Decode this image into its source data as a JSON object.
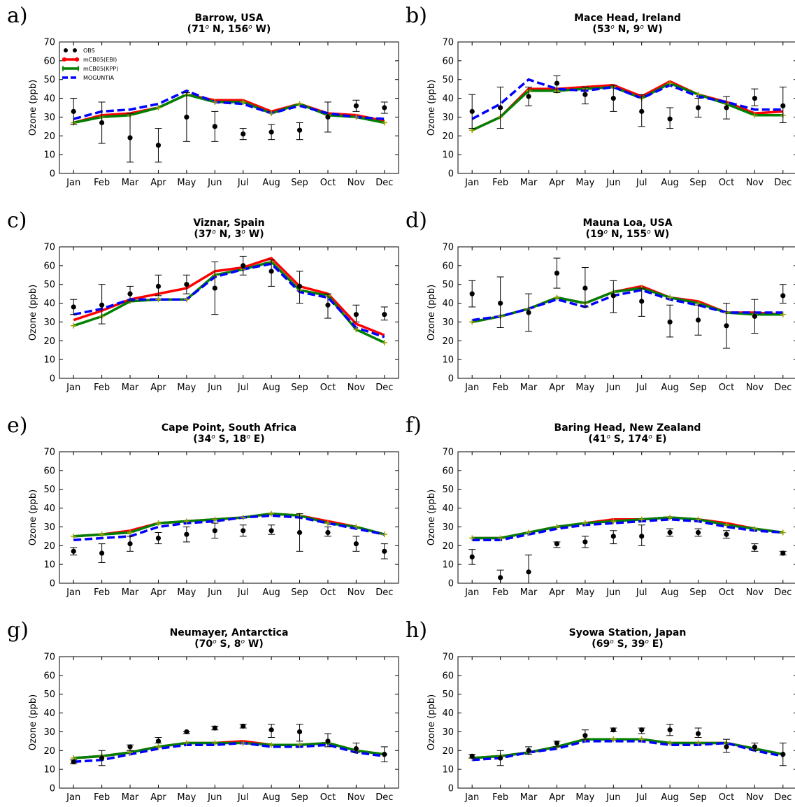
{
  "chart_data": {
    "type": "line",
    "categories": [
      "Jan",
      "Feb",
      "Mar",
      "Apr",
      "May",
      "Jun",
      "Jul",
      "Aug",
      "Sep",
      "Oct",
      "Nov",
      "Dec"
    ],
    "ylabel": "Ozone (ppb)",
    "ylim": [
      0,
      70
    ],
    "yticks": [
      0,
      10,
      20,
      30,
      40,
      50,
      60,
      70
    ],
    "grid": false,
    "legend": {
      "placement": "top-left",
      "panel": 0,
      "entries": [
        "OBS",
        "mCB05(EBI)",
        "mCB05(KPP)",
        "MOGUNTIA"
      ]
    },
    "series_styles": {
      "obs": {
        "color": "#000000"
      },
      "ebi": {
        "color": "#ff0000"
      },
      "kpp": {
        "color": "#008000"
      },
      "mog": {
        "color": "#0000ff"
      },
      "kpp_marker": "#9aa000"
    },
    "panels": [
      {
        "letter": "a)",
        "title": "Barrow, USA",
        "obs": [
          33,
          27,
          19,
          15,
          30,
          25,
          21,
          22,
          23,
          30,
          36,
          35
        ],
        "obs_low": [
          26,
          16,
          6,
          6,
          17,
          17,
          18,
          18,
          18,
          22,
          33,
          32
        ],
        "obs_high": [
          40,
          38,
          32,
          24,
          43,
          33,
          24,
          26,
          27,
          38,
          39,
          38
        ],
        "ebi": [
          27,
          31,
          32,
          35,
          42,
          39,
          39,
          33,
          37,
          32,
          31,
          28
        ],
        "kpp": [
          27,
          30,
          31,
          35,
          42,
          38,
          38,
          32,
          37,
          31,
          30,
          27
        ],
        "mog": [
          29,
          33,
          34,
          37,
          44,
          38,
          37,
          32,
          36,
          32,
          30,
          29
        ]
      },
      {
        "letter": "b)",
        "title": "Mace Head, Ireland",
        "obs": [
          33,
          35,
          41,
          48,
          42,
          40,
          33,
          29,
          35,
          35,
          40,
          36
        ],
        "obs_low": [
          24,
          24,
          36,
          43,
          37,
          33,
          25,
          24,
          30,
          29,
          36,
          27
        ],
        "obs_high": [
          42,
          46,
          46,
          52,
          46,
          47,
          42,
          35,
          40,
          41,
          45,
          46
        ],
        "ebi": [
          23,
          30,
          45,
          45,
          46,
          47,
          41,
          49,
          42,
          38,
          32,
          33
        ],
        "kpp": [
          23,
          30,
          44,
          44,
          45,
          46,
          40,
          48,
          42,
          37,
          31,
          31
        ],
        "mog": [
          29,
          37,
          50,
          45,
          44,
          46,
          40,
          47,
          41,
          38,
          34,
          34
        ]
      },
      {
        "letter": "c)",
        "title": "Viznar, Spain",
        "obs": [
          38,
          39,
          45,
          49,
          50,
          48,
          60,
          57,
          49,
          39,
          34,
          34
        ],
        "obs_low": [
          34,
          29,
          41,
          44,
          45,
          34,
          55,
          49,
          40,
          32,
          30,
          31
        ],
        "obs_high": [
          42,
          50,
          49,
          55,
          55,
          62,
          65,
          63,
          57,
          45,
          39,
          38
        ],
        "ebi": [
          31,
          36,
          42,
          45,
          48,
          57,
          59,
          64,
          49,
          45,
          29,
          23
        ],
        "kpp": [
          28,
          33,
          41,
          42,
          42,
          55,
          58,
          62,
          47,
          44,
          26,
          19
        ],
        "mog": [
          34,
          37,
          42,
          42,
          42,
          54,
          58,
          61,
          46,
          43,
          27,
          22
        ]
      },
      {
        "letter": "d)",
        "title": "Mauna Loa, USA",
        "obs": [
          45,
          40,
          35,
          56,
          48,
          44,
          41,
          30,
          31,
          28,
          33,
          44
        ],
        "obs_low": [
          38,
          27,
          25,
          48,
          38,
          35,
          33,
          22,
          23,
          16,
          24,
          40
        ],
        "obs_high": [
          52,
          54,
          45,
          64,
          59,
          52,
          48,
          39,
          39,
          40,
          42,
          50
        ],
        "ebi": [
          30,
          33,
          37,
          43,
          40,
          46,
          49,
          43,
          41,
          35,
          35,
          34
        ],
        "kpp": [
          30,
          33,
          37,
          43,
          40,
          46,
          48,
          43,
          40,
          35,
          34,
          34
        ],
        "mog": [
          31,
          33,
          37,
          42,
          38,
          44,
          47,
          42,
          39,
          35,
          35,
          35
        ]
      },
      {
        "letter": "e)",
        "title": "Cape Point, South Africa",
        "obs": [
          17,
          16,
          21,
          24,
          26,
          28,
          28,
          28,
          27,
          27,
          21,
          17
        ],
        "obs_low": [
          15,
          11,
          17,
          21,
          22,
          24,
          25,
          26,
          17,
          25,
          17,
          13
        ],
        "obs_high": [
          19,
          21,
          25,
          27,
          30,
          32,
          31,
          31,
          37,
          30,
          25,
          21
        ],
        "ebi": [
          25,
          26,
          28,
          32,
          33,
          34,
          35,
          37,
          36,
          33,
          30,
          26
        ],
        "kpp": [
          25,
          26,
          27,
          32,
          33,
          34,
          35,
          37,
          36,
          32,
          30,
          26
        ],
        "mog": [
          23,
          24,
          25,
          30,
          32,
          33,
          35,
          36,
          35,
          32,
          29,
          26
        ]
      },
      {
        "letter": "f)",
        "title": "Baring Head, New Zealand",
        "obs": [
          14,
          3,
          6,
          21,
          22,
          25,
          25,
          27,
          27,
          26,
          19,
          16
        ],
        "obs_low": [
          10,
          0,
          0,
          19,
          19,
          21,
          20,
          25,
          25,
          24,
          17,
          15
        ],
        "obs_high": [
          18,
          7,
          15,
          22,
          25,
          28,
          31,
          29,
          29,
          28,
          21,
          17
        ],
        "ebi": [
          24,
          24,
          27,
          30,
          32,
          34,
          34,
          35,
          34,
          32,
          29,
          27
        ],
        "kpp": [
          24,
          24,
          27,
          30,
          32,
          33,
          34,
          35,
          34,
          31,
          29,
          27
        ],
        "mog": [
          23,
          23,
          26,
          29,
          31,
          32,
          33,
          34,
          33,
          30,
          28,
          27
        ]
      },
      {
        "letter": "g)",
        "title": "Neumayer, Antarctica",
        "obs": [
          14,
          16,
          22,
          25,
          30,
          32,
          33,
          31,
          30,
          25,
          21,
          18
        ],
        "obs_low": [
          13,
          12,
          20,
          24,
          29,
          31,
          32,
          27,
          25,
          22,
          19,
          14
        ],
        "obs_high": [
          15,
          20,
          23,
          27,
          30,
          33,
          34,
          34,
          34,
          29,
          24,
          22
        ],
        "ebi": [
          16,
          17,
          19,
          22,
          24,
          24,
          25,
          23,
          23,
          24,
          20,
          18
        ],
        "kpp": [
          16,
          17,
          19,
          22,
          24,
          24,
          24,
          23,
          23,
          24,
          20,
          18
        ],
        "mog": [
          14,
          15,
          18,
          21,
          23,
          23,
          24,
          22,
          22,
          23,
          19,
          17
        ]
      },
      {
        "letter": "h)",
        "title": "Syowa Station, Japan",
        "obs": [
          17,
          16,
          20,
          24,
          28,
          31,
          31,
          31,
          29,
          22,
          22,
          18
        ],
        "obs_low": [
          16,
          12,
          18,
          22,
          26,
          30,
          29,
          28,
          27,
          19,
          20,
          12
        ],
        "obs_high": [
          18,
          20,
          22,
          25,
          31,
          32,
          32,
          34,
          32,
          26,
          24,
          24
        ],
        "ebi": [
          16,
          17,
          19,
          22,
          26,
          26,
          26,
          24,
          24,
          24,
          21,
          18
        ],
        "kpp": [
          16,
          17,
          19,
          22,
          26,
          26,
          26,
          24,
          24,
          24,
          21,
          18
        ],
        "mog": [
          15,
          16,
          19,
          21,
          25,
          25,
          25,
          23,
          23,
          24,
          20,
          17
        ]
      }
    ]
  },
  "panel_subtitles": [
    {
      "lat_deg": "71",
      "lat_hem": "N",
      "lon_deg": "156",
      "lon_hem": "W"
    },
    {
      "lat_deg": "53",
      "lat_hem": "N",
      "lon_deg": "9",
      "lon_hem": "W"
    },
    {
      "lat_deg": "37",
      "lat_hem": "N",
      "lon_deg": "3",
      "lon_hem": "W"
    },
    {
      "lat_deg": "19",
      "lat_hem": "N",
      "lon_deg": "155",
      "lon_hem": "W"
    },
    {
      "lat_deg": "34",
      "lat_hem": "S",
      "lon_deg": "18",
      "lon_hem": "E"
    },
    {
      "lat_deg": "41",
      "lat_hem": "S",
      "lon_deg": "174",
      "lon_hem": "E"
    },
    {
      "lat_deg": "70",
      "lat_hem": "S",
      "lon_deg": "8",
      "lon_hem": "W"
    },
    {
      "lat_deg": "69",
      "lat_hem": "S",
      "lon_deg": "39",
      "lon_hem": "E"
    }
  ],
  "degree_symbol": "o"
}
